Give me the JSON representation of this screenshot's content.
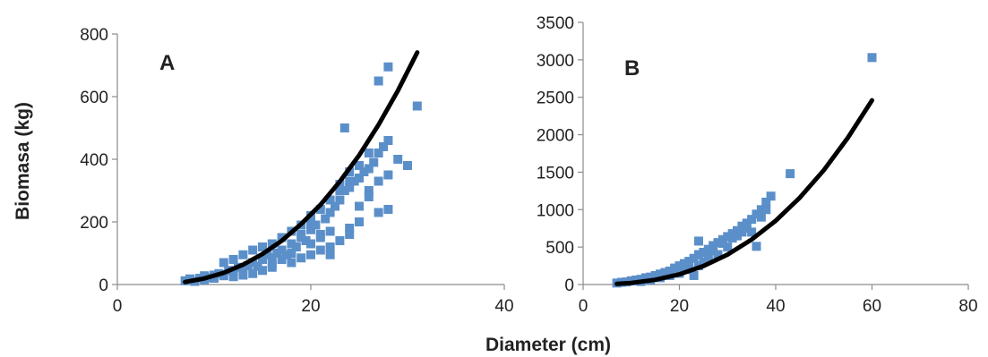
{
  "chart_data": [
    {
      "type": "scatter",
      "panel_label": "A",
      "ylabel": "Biomasa (kg)",
      "xlabel": "",
      "xlim": [
        0,
        40
      ],
      "ylim": [
        0,
        800
      ],
      "x_ticks": [
        "0",
        "20",
        "40"
      ],
      "y_ticks": [
        "0",
        "200",
        "400",
        "600",
        "800"
      ],
      "grid": false,
      "series": [
        {
          "kind": "points",
          "color": "#5b8fc9",
          "points": [
            [
              7,
              12
            ],
            [
              7.5,
              18
            ],
            [
              8,
              10
            ],
            [
              8.5,
              20
            ],
            [
              9,
              28
            ],
            [
              9.5,
              22
            ],
            [
              10,
              30
            ],
            [
              10.5,
              35
            ],
            [
              11,
              28
            ],
            [
              11.5,
              45
            ],
            [
              12,
              40
            ],
            [
              12.5,
              55
            ],
            [
              13,
              48
            ],
            [
              13.5,
              60
            ],
            [
              14,
              70
            ],
            [
              14.5,
              58
            ],
            [
              15,
              80
            ],
            [
              15.5,
              95
            ],
            [
              16,
              85
            ],
            [
              16.5,
              100
            ],
            [
              17,
              110
            ],
            [
              17.5,
              95
            ],
            [
              18,
              130
            ],
            [
              18.5,
              120
            ],
            [
              19,
              150
            ],
            [
              19.5,
              140
            ],
            [
              20,
              175
            ],
            [
              20.5,
              190
            ],
            [
              21,
              160
            ],
            [
              21.5,
              210
            ],
            [
              22,
              230
            ],
            [
              22.5,
              250
            ],
            [
              23,
              270
            ],
            [
              23.5,
              300
            ],
            [
              24,
              310
            ],
            [
              24.5,
              330
            ],
            [
              25,
              340
            ],
            [
              25.5,
              360
            ],
            [
              26,
              370
            ],
            [
              26.5,
              390
            ],
            [
              27,
              420
            ],
            [
              27.5,
              440
            ],
            [
              28,
              460
            ],
            [
              11,
              70
            ],
            [
              12,
              80
            ],
            [
              13,
              95
            ],
            [
              14,
              110
            ],
            [
              15,
              120
            ],
            [
              16,
              130
            ],
            [
              17,
              150
            ],
            [
              18,
              170
            ],
            [
              19,
              190
            ],
            [
              20,
              220
            ],
            [
              21,
              240
            ],
            [
              22,
              270
            ],
            [
              23,
              300
            ],
            [
              24,
              330
            ],
            [
              12,
              25
            ],
            [
              14,
              35
            ],
            [
              16,
              55
            ],
            [
              18,
              70
            ],
            [
              19,
              85
            ],
            [
              20,
              95
            ],
            [
              21,
              110
            ],
            [
              22,
              120
            ],
            [
              22,
              95
            ],
            [
              23,
              140
            ],
            [
              24,
              160
            ],
            [
              24,
              180
            ],
            [
              25,
              250
            ],
            [
              26,
              300
            ],
            [
              27,
              230
            ],
            [
              28,
              240
            ],
            [
              23.5,
              500
            ],
            [
              27,
              650
            ],
            [
              28,
              695
            ],
            [
              31,
              570
            ],
            [
              29,
              400
            ],
            [
              28,
              350
            ],
            [
              30,
              380
            ],
            [
              17,
              80
            ],
            [
              18,
              100
            ],
            [
              20,
              130
            ],
            [
              21,
              150
            ],
            [
              22,
              170
            ],
            [
              25,
              200
            ],
            [
              26,
              280
            ],
            [
              27,
              330
            ],
            [
              15,
              45
            ],
            [
              16,
              65
            ],
            [
              13,
              30
            ],
            [
              10,
              20
            ],
            [
              9,
              15
            ],
            [
              26,
              420
            ],
            [
              25,
              380
            ],
            [
              24,
              360
            ],
            [
              23,
              320
            ],
            [
              19,
              160
            ],
            [
              20,
              200
            ]
          ]
        },
        {
          "kind": "fit",
          "color": "#000000",
          "x": [
            7,
            9,
            11,
            13,
            15,
            17,
            19,
            21,
            23,
            25,
            27,
            29,
            31
          ],
          "y": [
            8.0,
            19.4,
            37.5,
            63.3,
            97.3,
            140,
            193,
            255,
            329,
            413,
            510,
            619,
            741
          ]
        }
      ]
    },
    {
      "type": "scatter",
      "panel_label": "B",
      "ylabel": "",
      "xlabel": "",
      "xlim": [
        0,
        80
      ],
      "ylim": [
        0,
        3500
      ],
      "x_ticks": [
        "0",
        "20",
        "40",
        "60",
        "80"
      ],
      "y_ticks": [
        "0",
        "500",
        "1000",
        "1500",
        "2000",
        "2500",
        "3000",
        "3500"
      ],
      "grid": false,
      "series": [
        {
          "kind": "points",
          "color": "#5b8fc9",
          "points": [
            [
              7,
              20
            ],
            [
              8,
              30
            ],
            [
              9,
              35
            ],
            [
              10,
              50
            ],
            [
              11,
              60
            ],
            [
              12,
              70
            ],
            [
              13,
              90
            ],
            [
              14,
              100
            ],
            [
              15,
              120
            ],
            [
              16,
              140
            ],
            [
              17,
              160
            ],
            [
              18,
              180
            ],
            [
              19,
              220
            ],
            [
              20,
              250
            ],
            [
              21,
              280
            ],
            [
              22,
              310
            ],
            [
              23,
              350
            ],
            [
              24,
              400
            ],
            [
              25,
              430
            ],
            [
              26,
              470
            ],
            [
              27,
              520
            ],
            [
              28,
              560
            ],
            [
              29,
              600
            ],
            [
              30,
              640
            ],
            [
              31,
              680
            ],
            [
              32,
              720
            ],
            [
              33,
              780
            ],
            [
              34,
              820
            ],
            [
              35,
              870
            ],
            [
              36,
              940
            ],
            [
              37,
              1000
            ],
            [
              38,
              1100
            ],
            [
              39,
              1180
            ],
            [
              43,
              1480
            ],
            [
              60,
              3030
            ],
            [
              36,
              510
            ],
            [
              35,
              700
            ],
            [
              24,
              580
            ],
            [
              23,
              120
            ],
            [
              25,
              300
            ],
            [
              28,
              400
            ],
            [
              30,
              500
            ],
            [
              32,
              650
            ],
            [
              34,
              750
            ],
            [
              26,
              350
            ],
            [
              22,
              200
            ],
            [
              20,
              150
            ],
            [
              18,
              120
            ],
            [
              16,
              90
            ],
            [
              14,
              60
            ],
            [
              12,
              40
            ],
            [
              21,
              230
            ],
            [
              27,
              450
            ],
            [
              29,
              550
            ],
            [
              31,
              620
            ],
            [
              33,
              700
            ],
            [
              37,
              900
            ],
            [
              38,
              1000
            ],
            [
              24,
              250
            ],
            [
              26,
              400
            ]
          ]
        },
        {
          "kind": "fit",
          "color": "#000000",
          "x": [
            7,
            10,
            15,
            20,
            25,
            30,
            35,
            40,
            45,
            50,
            55,
            60
          ],
          "y": [
            8,
            22,
            63,
            136,
            247,
            400,
            601,
            852,
            1160,
            1528,
            1960,
            2460
          ]
        }
      ]
    }
  ],
  "figure": {
    "shared_ylabel": "Biomasa (kg)",
    "shared_xlabel": "Diameter (cm)"
  }
}
